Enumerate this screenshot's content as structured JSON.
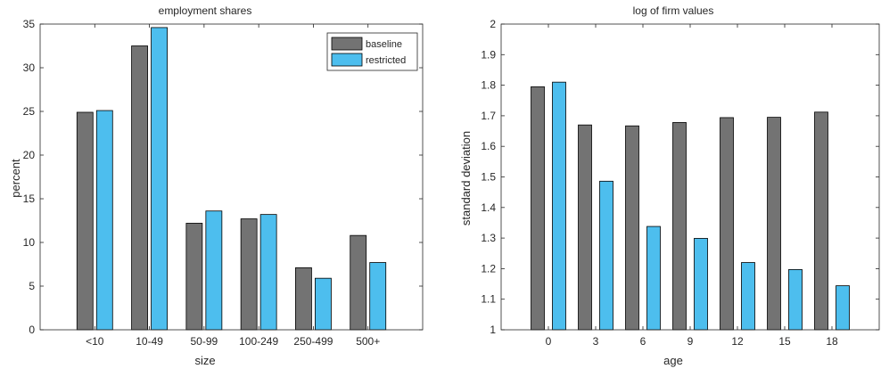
{
  "chart_data": [
    {
      "type": "bar",
      "title": "employment shares",
      "xlabel": "size",
      "ylabel": "percent",
      "categories": [
        "<10",
        "10-49",
        "50-99",
        "100-249",
        "250-499",
        "500+"
      ],
      "ylim": [
        0,
        35
      ],
      "yticks": [
        0,
        5,
        10,
        15,
        20,
        25,
        30,
        35
      ],
      "legend": "top-right",
      "grid": false,
      "series": [
        {
          "name": "baseline",
          "values": [
            24.9,
            32.5,
            12.2,
            12.7,
            7.1,
            10.8
          ]
        },
        {
          "name": "restricted",
          "values": [
            25.1,
            34.6,
            13.6,
            13.2,
            5.9,
            7.7
          ]
        }
      ]
    },
    {
      "type": "bar",
      "title": "log of firm values",
      "xlabel": "age",
      "ylabel": "standard deviation",
      "categories": [
        "0",
        "3",
        "6",
        "9",
        "12",
        "15",
        "18"
      ],
      "ylim": [
        1,
        2
      ],
      "yticks": [
        1,
        1.1,
        1.2,
        1.3,
        1.4,
        1.5,
        1.6,
        1.7,
        1.8,
        1.9,
        2
      ],
      "grid": false,
      "series": [
        {
          "name": "baseline",
          "values": [
            1.795,
            1.67,
            1.667,
            1.678,
            1.694,
            1.695,
            1.712
          ]
        },
        {
          "name": "restricted",
          "values": [
            1.81,
            1.486,
            1.338,
            1.299,
            1.22,
            1.197,
            1.144
          ]
        }
      ]
    }
  ],
  "colors": {
    "baseline": "#737373",
    "restricted": "#4dbeee",
    "edge": "#000000",
    "axis": "#262626"
  }
}
